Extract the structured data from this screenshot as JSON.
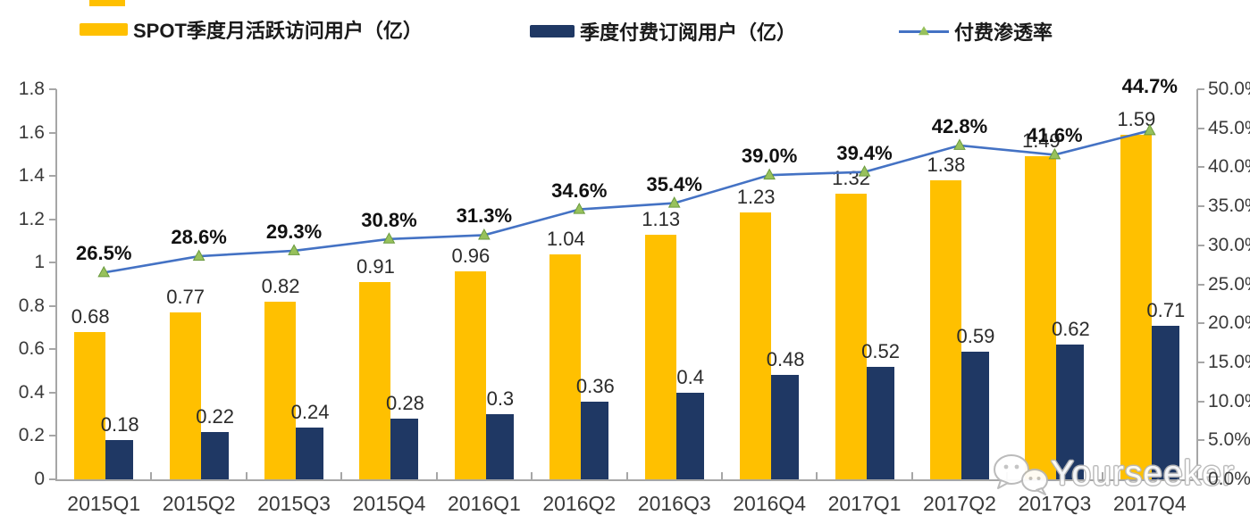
{
  "chart_data": {
    "type": "bar",
    "subtype": "combo-bar-line-dual-axis",
    "categories": [
      "2015Q1",
      "2015Q2",
      "2015Q3",
      "2015Q4",
      "2016Q1",
      "2016Q2",
      "2016Q3",
      "2016Q4",
      "2017Q1",
      "2017Q2",
      "2017Q3",
      "2017Q4"
    ],
    "series": [
      {
        "name": "SPOT季度月活跃访问用户（亿）",
        "type": "bar",
        "axis": "left",
        "color": "#FFC000",
        "values": [
          0.68,
          0.77,
          0.82,
          0.91,
          0.96,
          1.04,
          1.13,
          1.23,
          1.32,
          1.38,
          1.49,
          1.59
        ],
        "labels": [
          "0.68",
          "0.77",
          "0.82",
          "0.91",
          "0.96",
          "1.04",
          "1.13",
          "1.23",
          "1.32",
          "1.38",
          "1.49",
          "1.59"
        ]
      },
      {
        "name": "季度付费订阅用户（亿）",
        "type": "bar",
        "axis": "left",
        "color": "#1F3864",
        "values": [
          0.18,
          0.22,
          0.24,
          0.28,
          0.3,
          0.36,
          0.4,
          0.48,
          0.52,
          0.59,
          0.62,
          0.71
        ],
        "labels": [
          "0.18",
          "0.22",
          "0.24",
          "0.28",
          "0.3",
          "0.36",
          "0.4",
          "0.48",
          "0.52",
          "0.59",
          "0.62",
          "0.71"
        ]
      },
      {
        "name": "付费渗透率",
        "type": "line",
        "axis": "right",
        "color": "#4472C4",
        "marker": "triangle",
        "marker_fill": "#97C15C",
        "marker_stroke": "#6A9A3E",
        "values": [
          26.5,
          28.6,
          29.3,
          30.8,
          31.3,
          34.6,
          35.4,
          39.0,
          39.4,
          42.8,
          41.6,
          44.7
        ],
        "labels": [
          "26.5%",
          "28.6%",
          "29.3%",
          "30.8%",
          "31.3%",
          "34.6%",
          "35.4%",
          "39.0%",
          "39.4%",
          "42.8%",
          "41.6%",
          "44.7%"
        ]
      }
    ],
    "left_axis": {
      "min": 0,
      "max": 1.8,
      "step": 0.2,
      "ticks_top_down": [
        "1.8",
        "1.6",
        "1.4",
        "1.2",
        "1",
        "0.8",
        "0.6",
        "0.4",
        "0.2",
        "0"
      ]
    },
    "right_axis": {
      "min": 0,
      "max": 50,
      "step": 5,
      "ticks_top_down": [
        "50.0%",
        "45.0%",
        "40.0%",
        "35.0%",
        "30.0%",
        "25.0%",
        "20.0%",
        "15.0%",
        "10.0%",
        "5.0%",
        "0.0%"
      ]
    },
    "legend_position": "top",
    "grid": false,
    "axis_color": "#a6a6a6"
  },
  "watermark": {
    "text": "Yourseeker",
    "icon": "wechat-icon"
  }
}
